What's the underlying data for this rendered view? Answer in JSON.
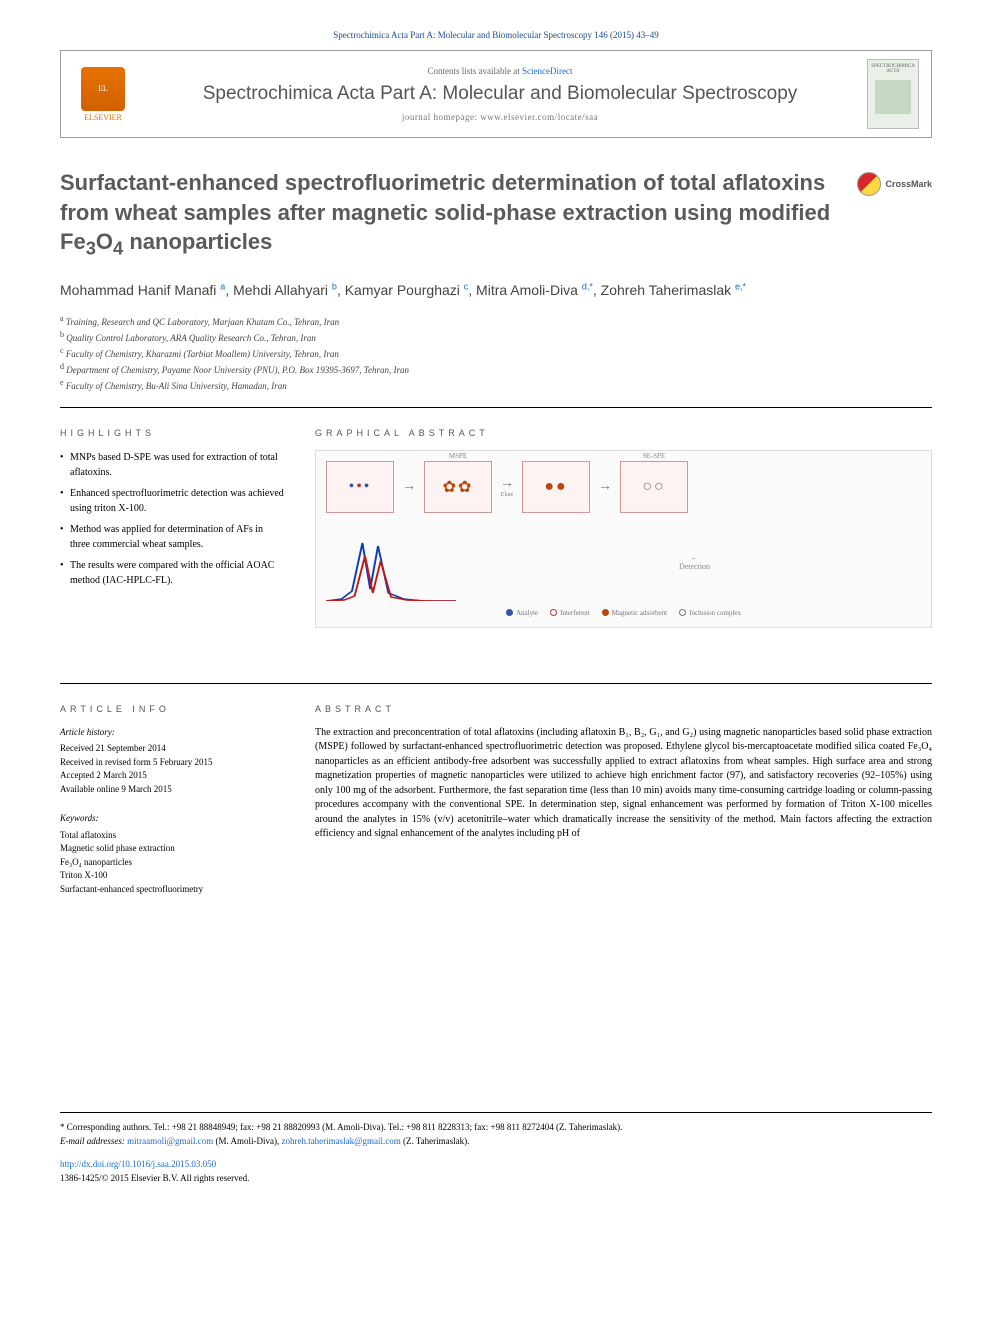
{
  "citation": "Spectrochimica Acta Part A: Molecular and Biomolecular Spectroscopy 146 (2015) 43–49",
  "header": {
    "publisher_label": "ELSEVIER",
    "contents_prefix": "Contents lists available at ",
    "contents_link": "ScienceDirect",
    "journal_title": "Spectrochimica Acta Part A: Molecular and Biomolecular Spectroscopy",
    "homepage_label": "journal homepage: www.elsevier.com/locate/saa",
    "cover_label": "SPECTROCHIMICA ACTA"
  },
  "crossmark_label": "CrossMark",
  "title_parts": {
    "line1": "Surfactant-enhanced spectrofluorimetric determination of total aflatoxins from wheat samples after magnetic solid-phase extraction using modified Fe",
    "sub1": "3",
    "mid1": "O",
    "sub2": "4",
    "line2": " nanoparticles"
  },
  "authors_html": "Mohammad Hanif Manafi <sup>a</sup>, Mehdi Allahyari <sup>b</sup>, Kamyar Pourghazi <sup>c</sup>, Mitra Amoli-Diva <sup>d,*</sup>, Zohreh Taherimaslak <sup>e,*</sup>",
  "affiliations": [
    "a Training, Research and QC Laboratory, Marjaan Khatam Co., Tehran, Iran",
    "b Quality Control Laboratory, ARA Quality Research Co., Tehran, Iran",
    "c Faculty of Chemistry, Kharazmi (Tarbiat Moallem) University, Tehran, Iran",
    "d Department of Chemistry, Payame Noor University (PNU), P.O. Box 19395-3697, Tehran, Iran",
    "e Faculty of Chemistry, Bu-Ali Sina University, Hamadan, Iran"
  ],
  "section_labels": {
    "highlights": "HIGHLIGHTS",
    "graphical": "GRAPHICAL ABSTRACT",
    "article_info": "ARTICLE INFO",
    "abstract": "ABSTRACT"
  },
  "highlights": [
    "MNPs based D-SPE was used for extraction of total aflatoxins.",
    "Enhanced spectrofluorimetric detection was achieved using triton X-100.",
    "Method was applied for determination of AFs in three commercial wheat samples.",
    "The results were compared with the official AOAC method (IAC-HPLC-FL)."
  ],
  "graphical_abstract": {
    "step_labels": [
      "",
      "MSPE",
      "Elute",
      "SE-SPE"
    ],
    "arrow_labels": [
      "",
      "",
      ""
    ],
    "detection_label": "Detection",
    "peaks": {
      "type": "line",
      "series": [
        {
          "color": "#0b3db5",
          "points": [
            [
              0,
              70
            ],
            [
              12,
              68
            ],
            [
              20,
              60
            ],
            [
              28,
              12
            ],
            [
              34,
              58
            ],
            [
              40,
              15
            ],
            [
              48,
              62
            ],
            [
              60,
              68
            ],
            [
              75,
              70
            ],
            [
              100,
              70
            ]
          ]
        },
        {
          "color": "#c01717",
          "points": [
            [
              0,
              70
            ],
            [
              14,
              69
            ],
            [
              22,
              65
            ],
            [
              30,
              25
            ],
            [
              36,
              62
            ],
            [
              42,
              30
            ],
            [
              50,
              66
            ],
            [
              62,
              69
            ],
            [
              78,
              70
            ],
            [
              100,
              70
            ]
          ]
        }
      ],
      "stroke_width": 1.5,
      "background": "#ffffff"
    },
    "legend": [
      {
        "label": "Analyte",
        "color": "#2f56a8",
        "shape": "circle-solid"
      },
      {
        "label": "Interferent",
        "color": "#b03838",
        "shape": "circle-outline"
      },
      {
        "label": "Magnetic adsorbent",
        "color": "#b8470a",
        "shape": "circle-solid"
      },
      {
        "label": "Inclusion complex",
        "color": "#7a7a7a",
        "shape": "circle-outline"
      }
    ]
  },
  "article_info": {
    "history_label": "Article history:",
    "history": [
      "Received 21 September 2014",
      "Received in revised form 5 February 2015",
      "Accepted 2 March 2015",
      "Available online 9 March 2015"
    ],
    "keywords_label": "Keywords:",
    "keywords": [
      "Total aflatoxins",
      "Magnetic solid phase extraction",
      "Fe₃O₄ nanoparticles",
      "Triton X-100",
      "Surfactant-enhanced spectrofluorimetry"
    ]
  },
  "abstract": "The extraction and preconcentration of total aflatoxins (including aflatoxin B₁, B₂, G₁, and G₂) using magnetic nanoparticles based solid phase extraction (MSPE) followed by surfactant-enhanced spectrofluorimetric detection was proposed. Ethylene glycol bis-mercaptoacetate modified silica coated Fe₃O₄ nanoparticles as an efficient antibody-free adsorbent was successfully applied to extract aflatoxins from wheat samples. High surface area and strong magnetization properties of magnetic nanoparticles were utilized to achieve high enrichment factor (97), and satisfactory recoveries (92–105%) using only 100 mg of the adsorbent. Furthermore, the fast separation time (less than 10 min) avoids many time-consuming cartridge loading or column-passing procedures accompany with the conventional SPE. In determination step, signal enhancement was performed by formation of Triton X-100 micelles around the analytes in 15% (v/v) acetonitrile–water which dramatically increase the sensitivity of the method. Main factors affecting the extraction efficiency and signal enhancement of the analytes including pH of",
  "footer": {
    "corresponding": "* Corresponding authors. Tel.: +98 21 88848949; fax: +98 21 88820993 (M. Amoli-Diva). Tel.: +98 811 8228313; fax: +98 811 8272404 (Z. Taherimaslak).",
    "email_label": "E-mail addresses: ",
    "email1": "mitraamoli@gmail.com",
    "email1_who": " (M. Amoli-Diva), ",
    "email2": "zohreh.taherimaslak@gmail.com",
    "email2_who": " (Z. Taherimaslak).",
    "doi": "http://dx.doi.org/10.1016/j.saa.2015.03.050",
    "issn_copyright": "1386-1425/© 2015 Elsevier B.V. All rights reserved."
  },
  "colors": {
    "link": "#1a6bc7",
    "heading": "#5a5a5a",
    "citation": "#1a4c8b"
  }
}
